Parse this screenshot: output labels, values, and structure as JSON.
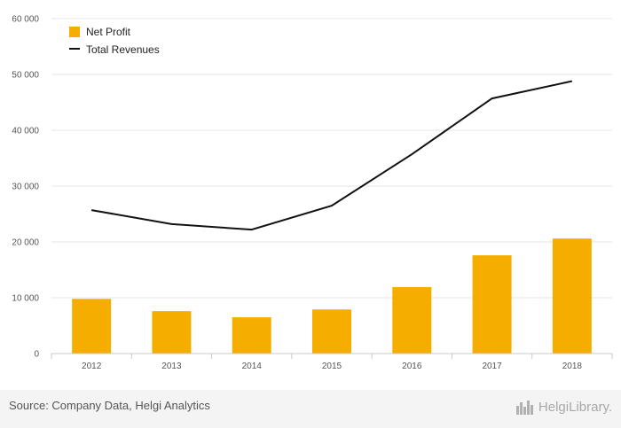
{
  "chart_data": {
    "type": "bar",
    "categories": [
      "2012",
      "2013",
      "2014",
      "2015",
      "2016",
      "2017",
      "2018"
    ],
    "series": [
      {
        "name": "Net Profit",
        "kind": "bar",
        "color": "#f5ae00",
        "values": [
          9800,
          7600,
          6500,
          7900,
          11900,
          17600,
          20600
        ]
      },
      {
        "name": "Total Revenues",
        "kind": "line",
        "color": "#111111",
        "values": [
          25700,
          23200,
          22200,
          26500,
          35700,
          45700,
          48800
        ]
      }
    ],
    "yticks": [
      "0",
      "10 000",
      "20 000",
      "30 000",
      "40 000",
      "50 000",
      "60 000"
    ],
    "ylim": [
      0,
      60000
    ],
    "grid": true,
    "legend_position": "top-left",
    "title": "",
    "xlabel": "",
    "ylabel": ""
  },
  "footer": {
    "source": "Source: Company Data, Helgi Analytics",
    "logo_text": "HelgiLibrary."
  }
}
